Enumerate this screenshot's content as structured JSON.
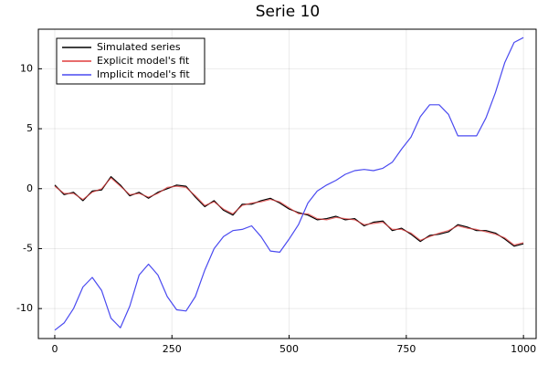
{
  "chart_data": {
    "type": "line",
    "title": "Serie 10",
    "x": [
      0,
      20,
      40,
      60,
      80,
      100,
      120,
      140,
      160,
      180,
      200,
      220,
      240,
      260,
      280,
      300,
      320,
      340,
      360,
      380,
      400,
      420,
      440,
      460,
      480,
      500,
      520,
      540,
      560,
      580,
      600,
      620,
      640,
      660,
      680,
      700,
      720,
      740,
      760,
      780,
      800,
      820,
      840,
      860,
      880,
      900,
      920,
      940,
      960,
      980,
      1000
    ],
    "series": [
      {
        "name": "Simulated series",
        "color": "#000000",
        "values": [
          0.3,
          -0.5,
          -0.3,
          -1.0,
          -0.2,
          -0.1,
          1.0,
          0.3,
          -0.6,
          -0.3,
          -0.8,
          -0.3,
          0.0,
          0.3,
          0.2,
          -0.7,
          -1.5,
          -1.0,
          -1.8,
          -2.2,
          -1.3,
          -1.3,
          -1.0,
          -0.8,
          -1.2,
          -1.7,
          -2.0,
          -2.2,
          -2.6,
          -2.5,
          -2.3,
          -2.6,
          -2.5,
          -3.1,
          -2.8,
          -2.7,
          -3.5,
          -3.3,
          -3.8,
          -4.4,
          -3.9,
          -3.8,
          -3.6,
          -3.0,
          -3.2,
          -3.5,
          -3.5,
          -3.7,
          -4.2,
          -4.8,
          -4.6
        ]
      },
      {
        "name": "Explicit model's fit",
        "color": "#e03c3c",
        "values": [
          0.2,
          -0.4,
          -0.4,
          -0.9,
          -0.3,
          0.0,
          0.9,
          0.2,
          -0.5,
          -0.4,
          -0.7,
          -0.4,
          0.1,
          0.2,
          0.1,
          -0.6,
          -1.4,
          -1.1,
          -1.7,
          -2.1,
          -1.4,
          -1.2,
          -1.1,
          -0.9,
          -1.1,
          -1.6,
          -2.1,
          -2.1,
          -2.5,
          -2.6,
          -2.4,
          -2.5,
          -2.6,
          -3.0,
          -2.9,
          -2.8,
          -3.4,
          -3.4,
          -3.7,
          -4.3,
          -4.0,
          -3.7,
          -3.5,
          -3.1,
          -3.3,
          -3.4,
          -3.6,
          -3.8,
          -4.1,
          -4.7,
          -4.5
        ]
      },
      {
        "name": "Implicit model's fit",
        "color": "#4a4af0",
        "values": [
          -11.8,
          -11.2,
          -10.0,
          -8.2,
          -7.4,
          -8.5,
          -10.8,
          -11.6,
          -9.8,
          -7.2,
          -6.3,
          -7.2,
          -9.0,
          -10.1,
          -10.2,
          -9.0,
          -6.8,
          -5.0,
          -4.0,
          -3.5,
          -3.4,
          -3.1,
          -4.0,
          -5.2,
          -5.3,
          -4.2,
          -3.0,
          -1.2,
          -0.2,
          0.3,
          0.7,
          1.2,
          1.5,
          1.6,
          1.5,
          1.7,
          2.2,
          3.3,
          4.3,
          6.0,
          7.0,
          7.0,
          6.2,
          4.4,
          4.4,
          4.4,
          5.9,
          8.0,
          10.5,
          12.2,
          12.6
        ]
      }
    ],
    "xlim": [
      -35,
      1027
    ],
    "ylim": [
      -12.5,
      13.3
    ],
    "xticks": [
      0,
      250,
      500,
      750,
      1000
    ],
    "yticks": [
      -10,
      -5,
      0,
      5,
      10
    ],
    "grid": true,
    "legend": "top-left"
  }
}
